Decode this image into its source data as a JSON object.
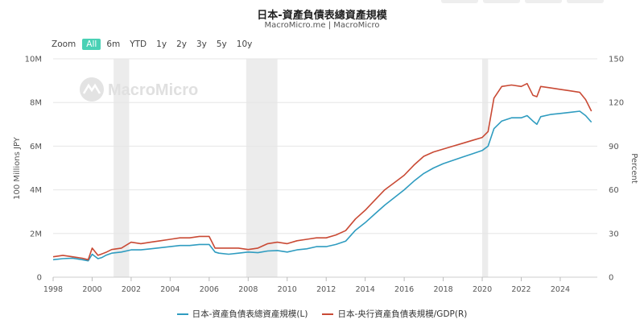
{
  "title": "日本-資產負債表總資產規模",
  "subtitle": "MacroMicro.me | MacroMicro",
  "watermark": "MacroMicro",
  "zoom": {
    "label": "Zoom",
    "options": [
      "All",
      "6m",
      "YTD",
      "1y",
      "2y",
      "3y",
      "5y",
      "10y"
    ],
    "selected": "All"
  },
  "chart_data": {
    "type": "line",
    "x_ticks": [
      "1998",
      "2000",
      "2002",
      "2004",
      "2006",
      "2008",
      "2010",
      "2012",
      "2014",
      "2016",
      "2018",
      "2020",
      "2022",
      "2024"
    ],
    "xlim": [
      1998,
      2025.9
    ],
    "ylabel_left": "100 Millions JPY",
    "ylabel_right": "Percent",
    "y_left_ticks": [
      "0",
      "2M",
      "4M",
      "6M",
      "8M",
      "10M"
    ],
    "y_left_lim": [
      0,
      10000000
    ],
    "y_right_ticks": [
      "0",
      "30",
      "60",
      "90",
      "120",
      "150"
    ],
    "y_right_lim": [
      0,
      150
    ],
    "grid": true,
    "legend_position": "bottom-center",
    "shaded_periods": [
      [
        2001.1,
        2001.9
      ],
      [
        2007.9,
        2009.5
      ],
      [
        2020.0,
        2020.3
      ]
    ],
    "series": [
      {
        "name": "日本-資產負債表總資產規模(L)",
        "axis": "left",
        "color": "#2f9cc0",
        "x": [
          1998.0,
          1998.5,
          1999.0,
          1999.5,
          1999.8,
          2000.0,
          2000.3,
          2000.5,
          2000.7,
          2001.0,
          2001.5,
          2002.0,
          2002.5,
          2003.0,
          2003.5,
          2004.0,
          2004.5,
          2005.0,
          2005.5,
          2006.0,
          2006.3,
          2006.5,
          2007.0,
          2007.5,
          2008.0,
          2008.5,
          2009.0,
          2009.5,
          2010.0,
          2010.5,
          2011.0,
          2011.5,
          2012.0,
          2012.5,
          2013.0,
          2013.5,
          2014.0,
          2014.5,
          2015.0,
          2015.5,
          2016.0,
          2016.5,
          2017.0,
          2017.5,
          2018.0,
          2018.5,
          2019.0,
          2019.5,
          2020.0,
          2020.3,
          2020.6,
          2021.0,
          2021.5,
          2022.0,
          2022.3,
          2022.6,
          2022.8,
          2023.0,
          2023.5,
          2024.0,
          2024.5,
          2025.0,
          2025.3,
          2025.6
        ],
        "values": [
          800000,
          850000,
          870000,
          800000,
          750000,
          1050000,
          850000,
          900000,
          1000000,
          1100000,
          1150000,
          1250000,
          1250000,
          1300000,
          1350000,
          1400000,
          1450000,
          1450000,
          1500000,
          1500000,
          1150000,
          1100000,
          1050000,
          1100000,
          1150000,
          1120000,
          1200000,
          1220000,
          1150000,
          1250000,
          1300000,
          1400000,
          1400000,
          1500000,
          1650000,
          2150000,
          2500000,
          2900000,
          3300000,
          3650000,
          4000000,
          4400000,
          4750000,
          5000000,
          5200000,
          5350000,
          5500000,
          5650000,
          5800000,
          6000000,
          6800000,
          7150000,
          7300000,
          7300000,
          7400000,
          7150000,
          7000000,
          7350000,
          7450000,
          7500000,
          7550000,
          7600000,
          7400000,
          7100000
        ]
      },
      {
        "name": "日本-央行資產負債表規模/GDP(R)",
        "axis": "right",
        "color": "#c94a35",
        "x": [
          1998.0,
          1998.5,
          1999.0,
          1999.5,
          1999.8,
          2000.0,
          2000.3,
          2000.5,
          2000.7,
          2001.0,
          2001.5,
          2002.0,
          2002.5,
          2003.0,
          2003.5,
          2004.0,
          2004.5,
          2005.0,
          2005.5,
          2006.0,
          2006.3,
          2006.5,
          2007.0,
          2007.5,
          2008.0,
          2008.5,
          2009.0,
          2009.5,
          2010.0,
          2010.5,
          2011.0,
          2011.5,
          2012.0,
          2012.5,
          2013.0,
          2013.5,
          2014.0,
          2014.5,
          2015.0,
          2015.5,
          2016.0,
          2016.5,
          2017.0,
          2017.5,
          2018.0,
          2018.5,
          2019.0,
          2019.5,
          2020.0,
          2020.3,
          2020.6,
          2021.0,
          2021.5,
          2022.0,
          2022.3,
          2022.6,
          2022.8,
          2023.0,
          2023.5,
          2024.0,
          2024.5,
          2025.0,
          2025.3,
          2025.6
        ],
        "values": [
          14,
          15,
          14,
          13,
          12,
          20,
          15,
          16,
          17,
          19,
          20,
          24,
          23,
          24,
          25,
          26,
          27,
          27,
          28,
          28,
          20,
          20,
          20,
          20,
          19,
          20,
          23,
          24,
          23,
          25,
          26,
          27,
          27,
          29,
          32,
          40,
          46,
          53,
          60,
          65,
          70,
          77,
          83,
          86,
          88,
          90,
          92,
          94,
          96,
          100,
          123,
          131,
          132,
          131,
          133,
          125,
          124,
          131,
          130,
          129,
          128,
          127,
          122,
          114
        ]
      }
    ]
  }
}
